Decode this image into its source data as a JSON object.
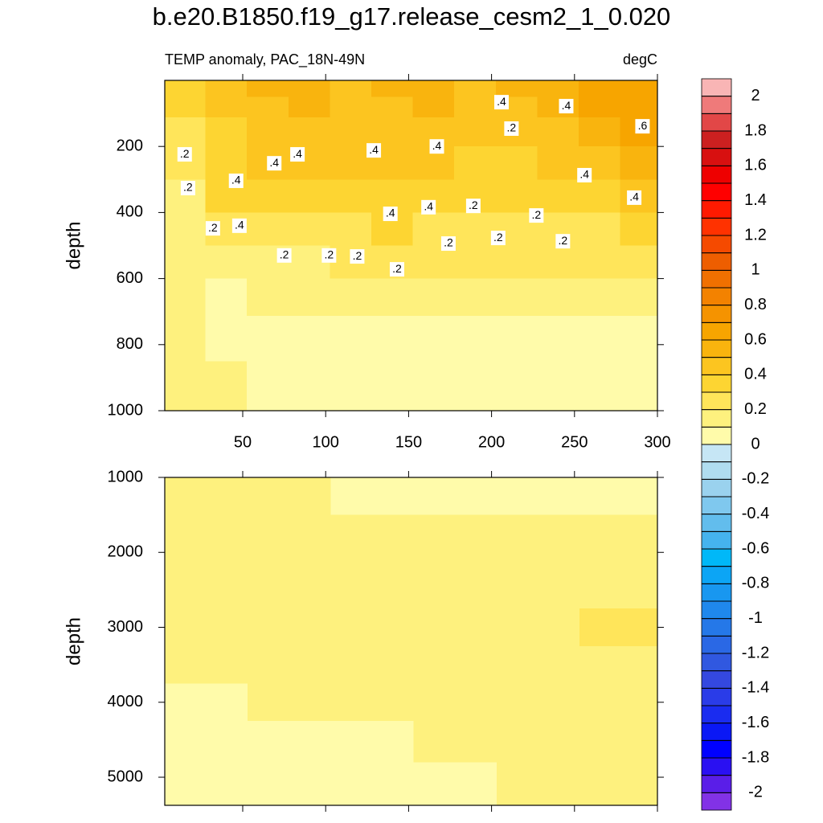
{
  "title": "b.e20.B1850.f19_g17.release_cesm2_1_0.020",
  "subtitle_left": "TEMP anomaly, PAC_18N-49N",
  "subtitle_right": "degC",
  "colorbar": {
    "levels": [
      -2,
      -1.9,
      -1.8,
      -1.7,
      -1.6,
      -1.5,
      -1.4,
      -1.3,
      -1.2,
      -1.1,
      -1,
      -0.9,
      -0.8,
      -0.7,
      -0.6,
      -0.5,
      -0.4,
      -0.3,
      -0.2,
      -0.1,
      0,
      0.1,
      0.2,
      0.3,
      0.4,
      0.5,
      0.6,
      0.7,
      0.8,
      0.9,
      1,
      1.1,
      1.2,
      1.3,
      1.4,
      1.5,
      1.6,
      1.7,
      1.8,
      1.9,
      2
    ],
    "colors": [
      "#8232e6",
      "#5a1ee8",
      "#2a10f2",
      "#0000ff",
      "#0a18f5",
      "#1a2cf0",
      "#2a3ce8",
      "#3448e0",
      "#3058e0",
      "#2a68e5",
      "#2578e8",
      "#1f88ec",
      "#1897f0",
      "#0ca5f5",
      "#00b8f8",
      "#45b3ee",
      "#62bded",
      "#7fc8ee",
      "#9ad2ee",
      "#b0ddf0",
      "#c6e6f5",
      "#fffbaa",
      "#fef17e",
      "#ffe55a",
      "#fdd532",
      "#fcc520",
      "#f9b40e",
      "#f7a500",
      "#f59300",
      "#f38200",
      "#f07000",
      "#ee5e00",
      "#f54a00",
      "#ff3200",
      "#ff1a00",
      "#ff0000",
      "#ee0000",
      "#d81010",
      "#cc2020",
      "#e24747",
      "#ef7a7a",
      "#f9b5b5"
    ]
  },
  "chart_data": [
    {
      "type": "contour",
      "y_label": "depth",
      "xlim": [
        3,
        300
      ],
      "ylim": [
        0,
        1000
      ],
      "xticks": [
        50,
        100,
        150,
        200,
        250,
        300
      ],
      "yticks": [
        200,
        400,
        600,
        800,
        1000
      ],
      "xtick_labels": true,
      "x": [
        15,
        40,
        65,
        90,
        115,
        140,
        165,
        190,
        215,
        240,
        265,
        290
      ],
      "y": [
        25,
        75,
        150,
        250,
        350,
        450,
        550,
        650,
        775,
        925
      ],
      "z": [
        [
          0.35,
          0.45,
          0.55,
          0.55,
          0.45,
          0.55,
          0.55,
          0.45,
          0.55,
          0.55,
          0.65,
          0.65
        ],
        [
          0.35,
          0.45,
          0.45,
          0.55,
          0.45,
          0.45,
          0.55,
          0.45,
          0.45,
          0.55,
          0.65,
          0.65
        ],
        [
          0.25,
          0.35,
          0.45,
          0.45,
          0.45,
          0.45,
          0.45,
          0.45,
          0.45,
          0.45,
          0.55,
          0.65
        ],
        [
          0.25,
          0.35,
          0.45,
          0.45,
          0.45,
          0.45,
          0.45,
          0.35,
          0.35,
          0.45,
          0.45,
          0.55
        ],
        [
          0.15,
          0.35,
          0.35,
          0.35,
          0.35,
          0.35,
          0.35,
          0.35,
          0.35,
          0.35,
          0.35,
          0.45
        ],
        [
          0.15,
          0.25,
          0.25,
          0.25,
          0.25,
          0.35,
          0.25,
          0.25,
          0.25,
          0.25,
          0.25,
          0.35
        ],
        [
          0.15,
          0.15,
          0.15,
          0.15,
          0.25,
          0.25,
          0.25,
          0.25,
          0.25,
          0.25,
          0.25,
          0.25
        ],
        [
          0.15,
          0.05,
          0.15,
          0.15,
          0.15,
          0.15,
          0.15,
          0.15,
          0.15,
          0.15,
          0.15,
          0.15
        ],
        [
          0.15,
          0.05,
          0.05,
          0.05,
          0.05,
          0.05,
          0.05,
          0.05,
          0.05,
          0.05,
          0.05,
          0.05
        ],
        [
          0.15,
          0.15,
          0.05,
          0.05,
          0.05,
          0.05,
          0.05,
          0.05,
          0.05,
          0.05,
          0.05,
          0.05
        ]
      ],
      "contour_labels": [
        {
          "text": ".4",
          "x": 206,
          "y": 66
        },
        {
          "text": ".4",
          "x": 245,
          "y": 78
        },
        {
          "text": ".2",
          "x": 212,
          "y": 146
        },
        {
          "text": ".6",
          "x": 291,
          "y": 139
        },
        {
          "text": ".2",
          "x": 15,
          "y": 224
        },
        {
          "text": ".4",
          "x": 83,
          "y": 224
        },
        {
          "text": ".4",
          "x": 69,
          "y": 251
        },
        {
          "text": ".4",
          "x": 129,
          "y": 212
        },
        {
          "text": ".4",
          "x": 167,
          "y": 200
        },
        {
          "text": ".4",
          "x": 46,
          "y": 304
        },
        {
          "text": ".4",
          "x": 256,
          "y": 287
        },
        {
          "text": ".2",
          "x": 17,
          "y": 326
        },
        {
          "text": ".4",
          "x": 286,
          "y": 355
        },
        {
          "text": ".4",
          "x": 139,
          "y": 404
        },
        {
          "text": ".4",
          "x": 162,
          "y": 384
        },
        {
          "text": ".2",
          "x": 189,
          "y": 380
        },
        {
          "text": ".2",
          "x": 227,
          "y": 409
        },
        {
          "text": ".2",
          "x": 32,
          "y": 448
        },
        {
          "text": ".4",
          "x": 48,
          "y": 440
        },
        {
          "text": ".2",
          "x": 204,
          "y": 477
        },
        {
          "text": ".2",
          "x": 243,
          "y": 487
        },
        {
          "text": ".2",
          "x": 174,
          "y": 494
        },
        {
          "text": ".2",
          "x": 75,
          "y": 530
        },
        {
          "text": ".2",
          "x": 102,
          "y": 530
        },
        {
          "text": ".2",
          "x": 119,
          "y": 533
        },
        {
          "text": ".2",
          "x": 143,
          "y": 572
        }
      ]
    },
    {
      "type": "contour",
      "y_label": "depth",
      "xlim": [
        3,
        300
      ],
      "ylim": [
        1000,
        5375
      ],
      "xticks": [
        50,
        100,
        150,
        200,
        250,
        300
      ],
      "yticks": [
        1000,
        2000,
        3000,
        4000,
        5000
      ],
      "xtick_labels": false,
      "x": [
        28,
        78,
        128,
        178,
        228,
        278
      ],
      "y": [
        1200,
        1800,
        2500,
        3000,
        3500,
        4000,
        4500,
        5100
      ],
      "z": [
        [
          0.15,
          0.15,
          0.05,
          0.05,
          0.05,
          0.05
        ],
        [
          0.15,
          0.15,
          0.15,
          0.15,
          0.15,
          0.15
        ],
        [
          0.15,
          0.15,
          0.15,
          0.15,
          0.15,
          0.15
        ],
        [
          0.15,
          0.15,
          0.15,
          0.15,
          0.15,
          0.25
        ],
        [
          0.15,
          0.15,
          0.15,
          0.15,
          0.15,
          0.15
        ],
        [
          0.05,
          0.15,
          0.15,
          0.15,
          0.15,
          0.15
        ],
        [
          0.05,
          0.05,
          0.05,
          0.15,
          0.15,
          0.15
        ],
        [
          0.05,
          0.05,
          0.05,
          0.05,
          0.15,
          0.15
        ]
      ],
      "contour_labels": []
    }
  ]
}
